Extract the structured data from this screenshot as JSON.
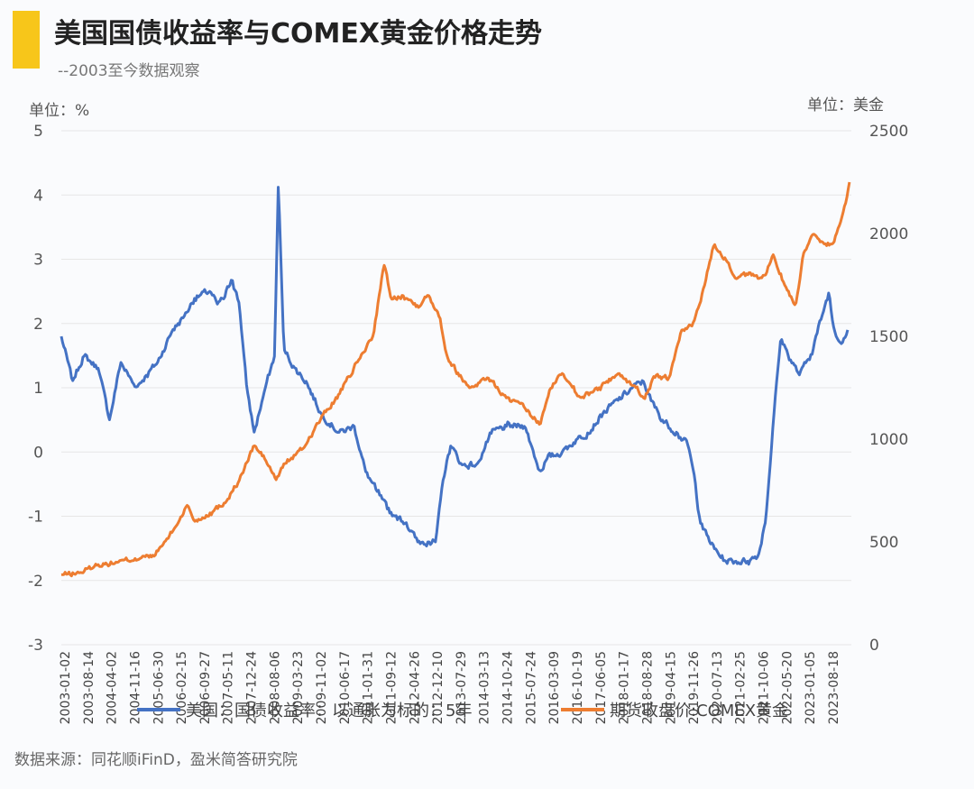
{
  "header": {
    "title": "美国国债收益率与COMEX黄金价格走势",
    "subtitle": "--2003至今数据观察",
    "unit_left": "单位：%",
    "unit_right": "单位：美金",
    "source": "数据来源：同花顺iFinD，盈米简答研究院"
  },
  "colors": {
    "accent": "#f7c61a",
    "series_yield": "#4472c4",
    "series_gold": "#ed7d31",
    "grid": "#e6e6e6"
  },
  "chart_data": {
    "type": "line",
    "title": "美国国债收益率与COMEX黄金价格走势",
    "x_tick_labels": [
      "2003-01-02",
      "2003-08-14",
      "2004-04-02",
      "2004-11-16",
      "2005-06-30",
      "2006-02-15",
      "2006-09-27",
      "2007-05-11",
      "2007-12-24",
      "2008-08-06",
      "2009-03-23",
      "2009-11-02",
      "2010-06-17",
      "2011-01-31",
      "2011-09-12",
      "2012-04-26",
      "2012-12-10",
      "2013-07-29",
      "2014-03-13",
      "2014-10-24",
      "2015-07-24",
      "2016-03-09",
      "2016-10-19",
      "2017-06-05",
      "2018-01-17",
      "2018-08-28",
      "2019-04-15",
      "2019-11-26",
      "2020-07-13",
      "2021-02-25",
      "2021-10-06",
      "2022-05-20",
      "2023-01-05",
      "2023-08-18"
    ],
    "y_left": {
      "label": "单位：%",
      "range": [
        -3,
        5
      ],
      "ticks": [
        "5",
        "4",
        "3",
        "2",
        "1",
        "0",
        "-1",
        "-2",
        "-3"
      ]
    },
    "y_right": {
      "label": "单位：美金",
      "range": [
        0,
        2500
      ],
      "ticks": [
        "2500",
        "2000",
        "1500",
        "1000",
        "500",
        "0"
      ]
    },
    "series": [
      {
        "name": "美国：国债收益率：以通胀为标的：5年",
        "axis": "left",
        "x": [
          2003.0,
          2003.3,
          2003.6,
          2004.0,
          2004.3,
          2004.6,
          2004.8,
          2005.0,
          2005.3,
          2005.6,
          2006.0,
          2006.3,
          2006.6,
          2007.0,
          2007.2,
          2007.4,
          2007.6,
          2007.8,
          2008.0,
          2008.2,
          2008.5,
          2008.75,
          2008.85,
          2009.0,
          2009.3,
          2009.6,
          2010.0,
          2010.5,
          2010.9,
          2011.2,
          2011.5,
          2011.8,
          2012.0,
          2012.3,
          2012.6,
          2012.9,
          2013.1,
          2013.3,
          2013.5,
          2013.8,
          2014.2,
          2014.6,
          2015.0,
          2015.5,
          2015.9,
          2016.1,
          2016.5,
          2016.9,
          2017.2,
          2017.6,
          2018.0,
          2018.4,
          2018.7,
          2018.9,
          2019.2,
          2019.6,
          2019.9,
          2020.1,
          2020.2,
          2020.3,
          2020.6,
          2020.9,
          2021.2,
          2021.5,
          2021.8,
          2022.0,
          2022.2,
          2022.4,
          2022.6,
          2022.9,
          2023.2,
          2023.5,
          2023.7,
          2023.8,
          2024.0,
          2024.2
        ],
        "values": [
          1.8,
          1.1,
          1.5,
          1.3,
          0.5,
          1.4,
          1.2,
          1.0,
          1.2,
          1.4,
          1.9,
          2.1,
          2.4,
          2.5,
          2.3,
          2.4,
          2.7,
          2.3,
          1.0,
          0.3,
          1.0,
          1.5,
          4.2,
          1.6,
          1.3,
          1.1,
          0.6,
          0.3,
          0.4,
          -0.3,
          -0.6,
          -0.9,
          -1.0,
          -1.1,
          -1.4,
          -1.4,
          -1.4,
          -0.4,
          0.1,
          -0.2,
          -0.2,
          0.3,
          0.4,
          0.4,
          -0.3,
          -0.1,
          0.0,
          0.2,
          0.3,
          0.6,
          0.8,
          1.0,
          1.1,
          0.8,
          0.5,
          0.3,
          0.1,
          -0.5,
          -1.0,
          -1.2,
          -1.5,
          -1.7,
          -1.7,
          -1.7,
          -1.6,
          -1.0,
          0.5,
          1.8,
          1.5,
          1.2,
          1.5,
          2.1,
          2.5,
          2.0,
          1.7,
          1.9
        ]
      },
      {
        "name": "期货收盘价:COMEX黄金",
        "axis": "right",
        "x": [
          2003.0,
          2003.5,
          2004.0,
          2004.5,
          2005.0,
          2005.5,
          2006.0,
          2006.4,
          2006.6,
          2007.0,
          2007.4,
          2007.8,
          2008.2,
          2008.5,
          2008.8,
          2009.0,
          2009.5,
          2010.0,
          2010.5,
          2011.0,
          2011.4,
          2011.7,
          2011.9,
          2012.2,
          2012.6,
          2012.9,
          2013.2,
          2013.4,
          2013.7,
          2014.0,
          2014.5,
          2015.0,
          2015.5,
          2015.9,
          2016.2,
          2016.5,
          2016.8,
          2017.0,
          2017.5,
          2018.0,
          2018.5,
          2018.7,
          2019.0,
          2019.4,
          2019.7,
          2020.0,
          2020.2,
          2020.6,
          2020.9,
          2021.2,
          2021.5,
          2021.8,
          2022.0,
          2022.2,
          2022.5,
          2022.8,
          2023.0,
          2023.3,
          2023.6,
          2023.8,
          2024.0,
          2024.15,
          2024.25
        ],
        "values": [
          340,
          350,
          390,
          400,
          420,
          430,
          550,
          680,
          600,
          640,
          690,
          800,
          970,
          900,
          800,
          880,
          950,
          1100,
          1220,
          1380,
          1500,
          1850,
          1680,
          1700,
          1650,
          1700,
          1600,
          1400,
          1320,
          1250,
          1300,
          1200,
          1150,
          1070,
          1250,
          1320,
          1260,
          1200,
          1250,
          1320,
          1250,
          1200,
          1300,
          1300,
          1520,
          1550,
          1650,
          1950,
          1880,
          1780,
          1800,
          1780,
          1800,
          1900,
          1750,
          1650,
          1900,
          2000,
          1950,
          1950,
          2050,
          2150,
          2250
        ]
      }
    ]
  },
  "legend": [
    {
      "label": "美国：国债收益率：以通胀为标的：5年"
    },
    {
      "label": "期货收盘价:COMEX黄金"
    }
  ]
}
